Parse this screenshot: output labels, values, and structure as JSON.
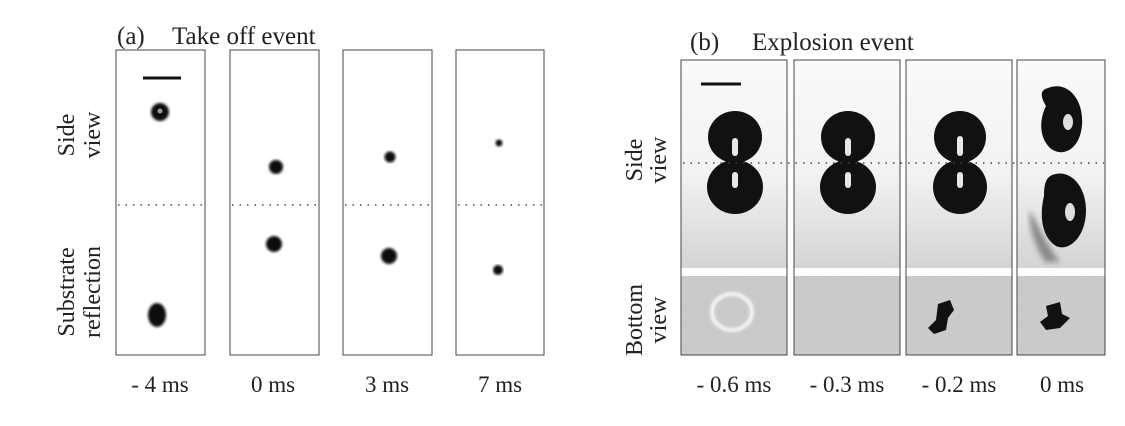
{
  "panel_a": {
    "label": "(a)",
    "title": "Take off event",
    "row_labels": [
      {
        "lines": [
          "Side",
          "view"
        ]
      },
      {
        "lines": [
          "Substrate",
          "reflection"
        ]
      }
    ],
    "times": [
      "- 4 ms",
      "0 ms",
      "3 ms",
      "7 ms"
    ]
  },
  "panel_b": {
    "label": "(b)",
    "title": "Explosion event",
    "row_labels": [
      {
        "lines": [
          "Side",
          "view"
        ]
      },
      {
        "lines": [
          "Bottom",
          "view"
        ]
      }
    ],
    "times": [
      "- 0.6 ms",
      "- 0.3 ms",
      "- 0.2 ms",
      "0 ms"
    ]
  }
}
